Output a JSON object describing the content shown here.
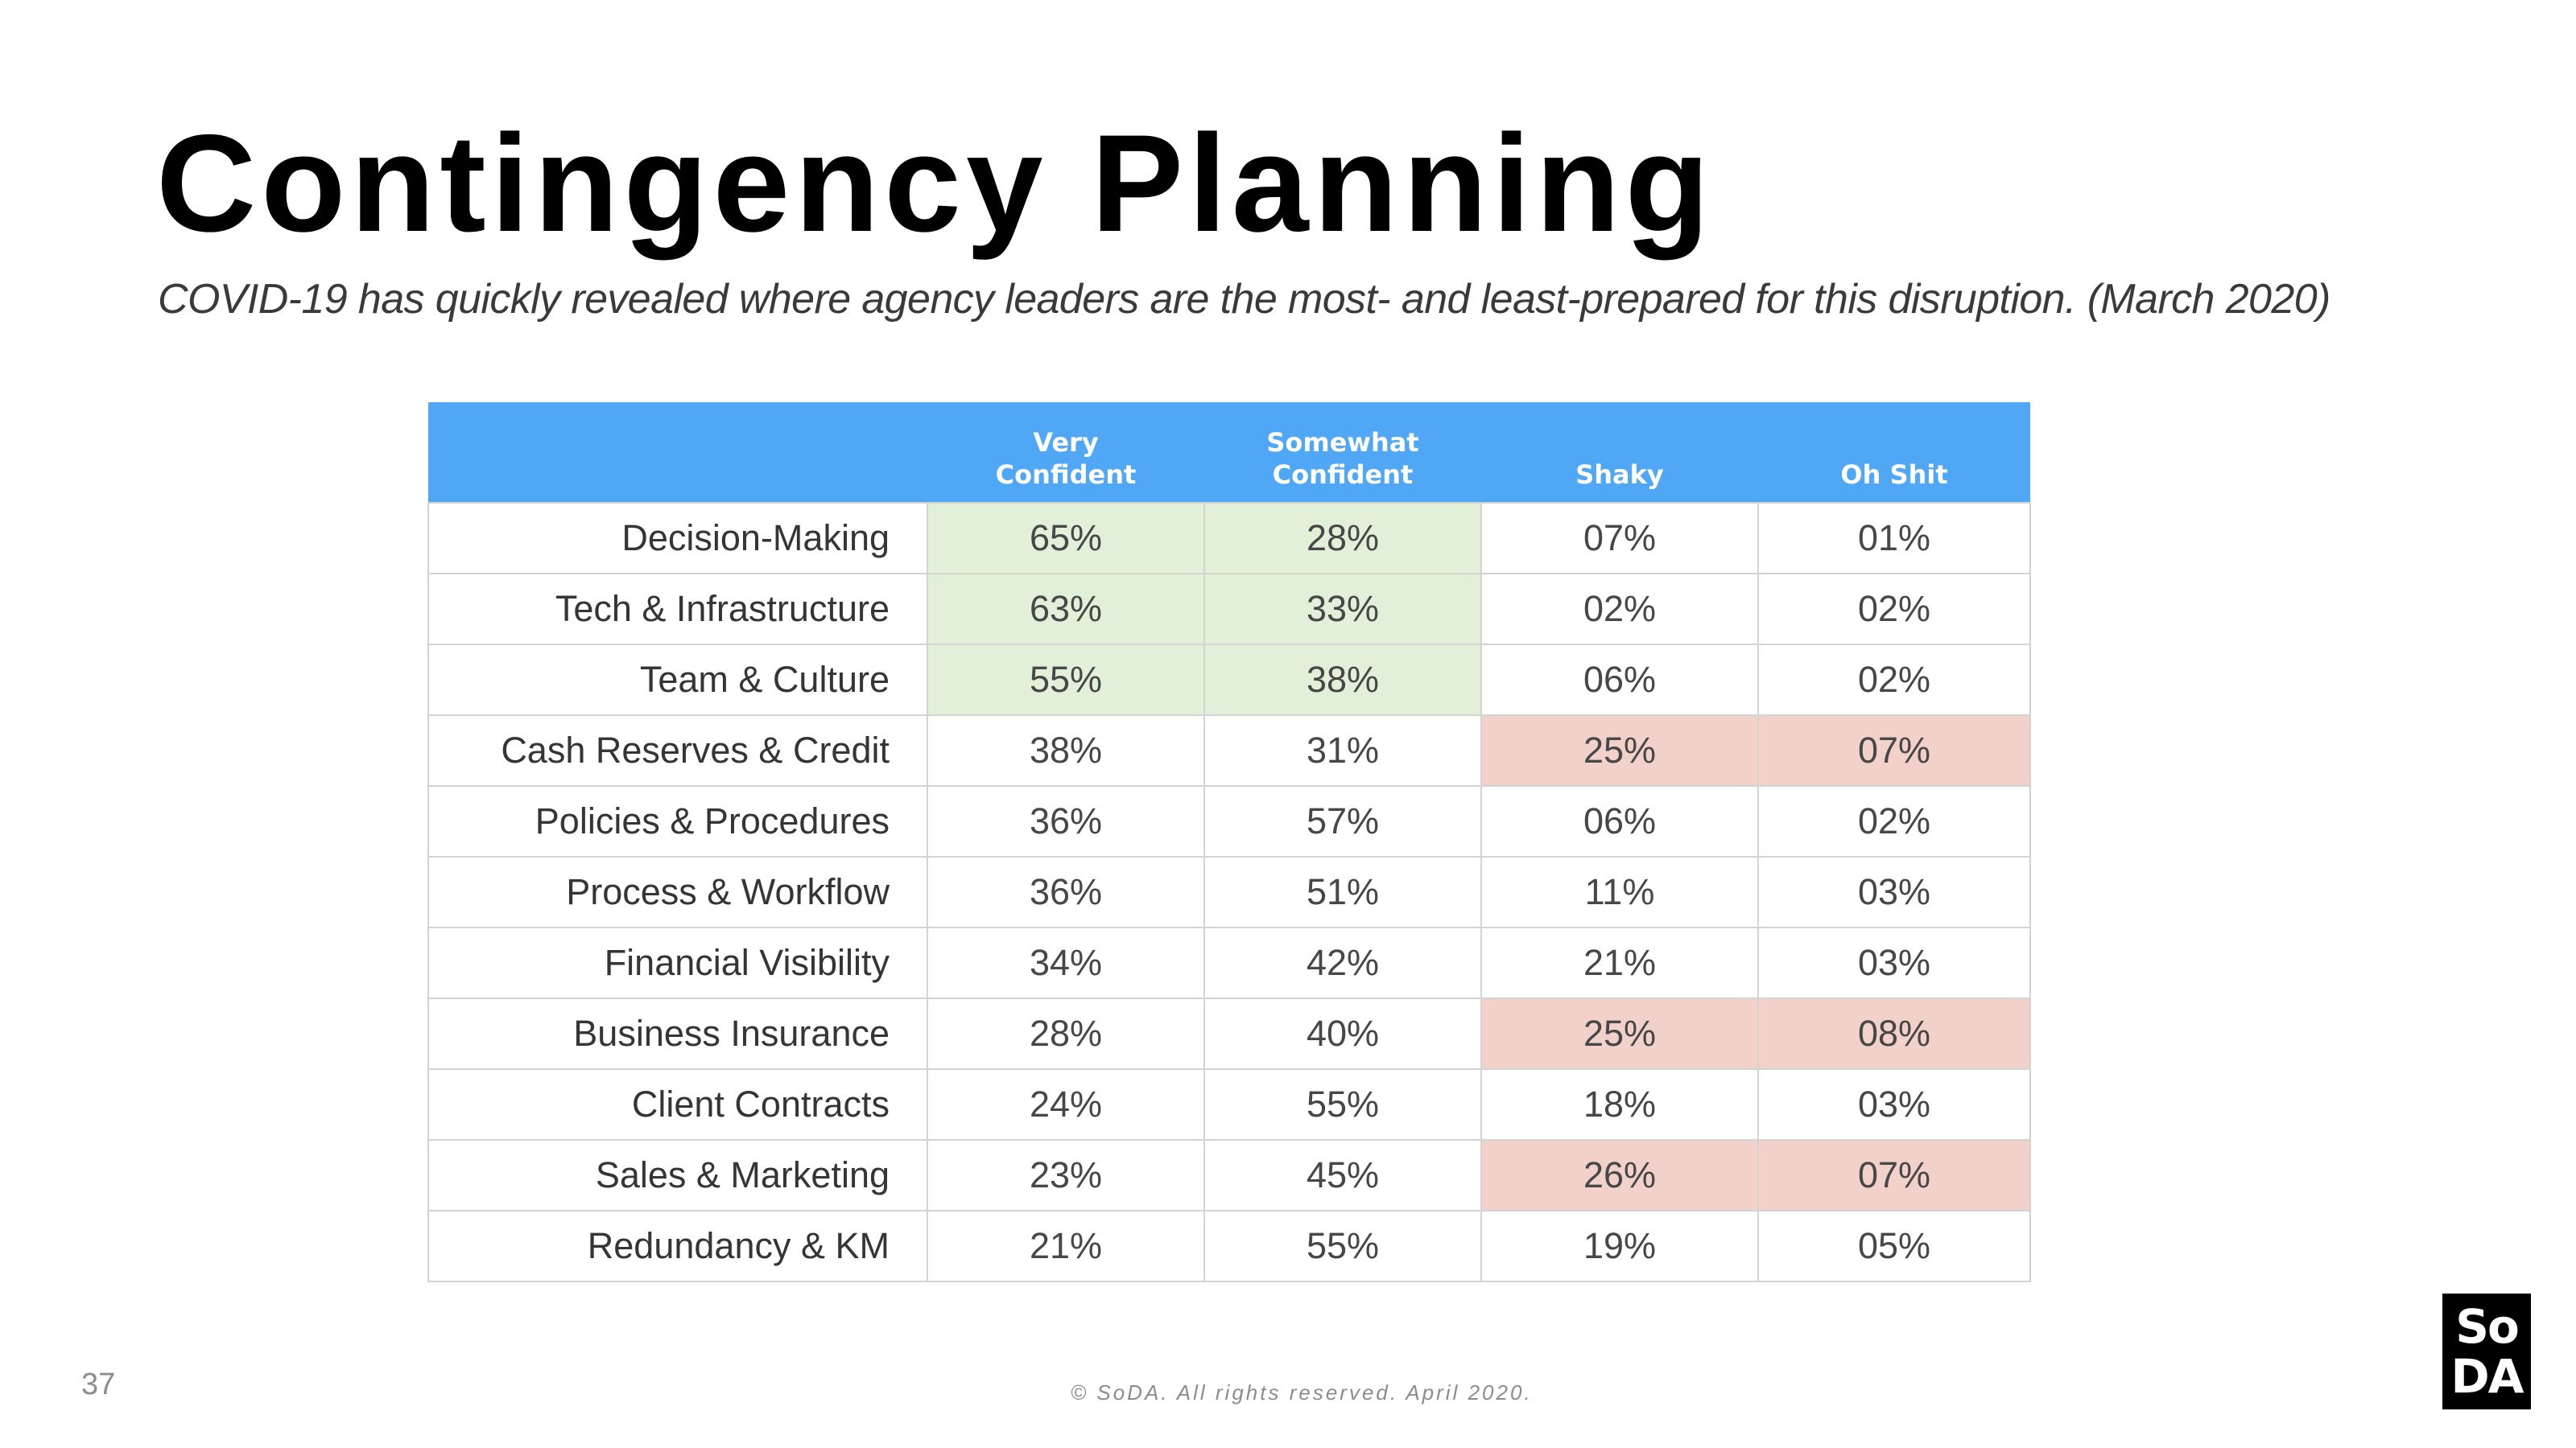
{
  "title": "Contingency Planning",
  "subtitle": "COVID-19 has quickly revealed where agency leaders are the most- and least-prepared for this disruption. (March 2020)",
  "colors": {
    "header_bg": "#4fa7f5",
    "highlight_green": "#e3f0d9",
    "highlight_red": "#f2d1ca"
  },
  "table": {
    "columns": [
      "",
      "Very\nConfident",
      "Somewhat\nConfident",
      "Shaky",
      "Oh Shit"
    ],
    "rows": [
      {
        "label": "Decision-Making",
        "values": [
          "65%",
          "28%",
          "07%",
          "01%"
        ],
        "highlight": [
          "green",
          "green",
          "",
          ""
        ]
      },
      {
        "label": "Tech & Infrastructure",
        "values": [
          "63%",
          "33%",
          "02%",
          "02%"
        ],
        "highlight": [
          "green",
          "green",
          "",
          ""
        ]
      },
      {
        "label": "Team & Culture",
        "values": [
          "55%",
          "38%",
          "06%",
          "02%"
        ],
        "highlight": [
          "green",
          "green",
          "",
          ""
        ]
      },
      {
        "label": "Cash Reserves & Credit",
        "values": [
          "38%",
          "31%",
          "25%",
          "07%"
        ],
        "highlight": [
          "",
          "",
          "red",
          "red"
        ]
      },
      {
        "label": "Policies & Procedures",
        "values": [
          "36%",
          "57%",
          "06%",
          "02%"
        ],
        "highlight": [
          "",
          "",
          "",
          ""
        ]
      },
      {
        "label": "Process & Workflow",
        "values": [
          "36%",
          "51%",
          "11%",
          "03%"
        ],
        "highlight": [
          "",
          "",
          "",
          ""
        ]
      },
      {
        "label": "Financial Visibility",
        "values": [
          "34%",
          "42%",
          "21%",
          "03%"
        ],
        "highlight": [
          "",
          "",
          "",
          ""
        ]
      },
      {
        "label": "Business Insurance",
        "values": [
          "28%",
          "40%",
          "25%",
          "08%"
        ],
        "highlight": [
          "",
          "",
          "red",
          "red"
        ]
      },
      {
        "label": "Client Contracts",
        "values": [
          "24%",
          "55%",
          "18%",
          "03%"
        ],
        "highlight": [
          "",
          "",
          "",
          ""
        ]
      },
      {
        "label": "Sales & Marketing",
        "values": [
          "23%",
          "45%",
          "26%",
          "07%"
        ],
        "highlight": [
          "",
          "",
          "red",
          "red"
        ]
      },
      {
        "label": "Redundancy & KM",
        "values": [
          "21%",
          "55%",
          "19%",
          "05%"
        ],
        "highlight": [
          "",
          "",
          "",
          ""
        ]
      }
    ]
  },
  "page_number": "37",
  "footer": "© SoDA. All rights reserved. April 2020.",
  "logo": {
    "line1": "So",
    "line2": "DA"
  }
}
